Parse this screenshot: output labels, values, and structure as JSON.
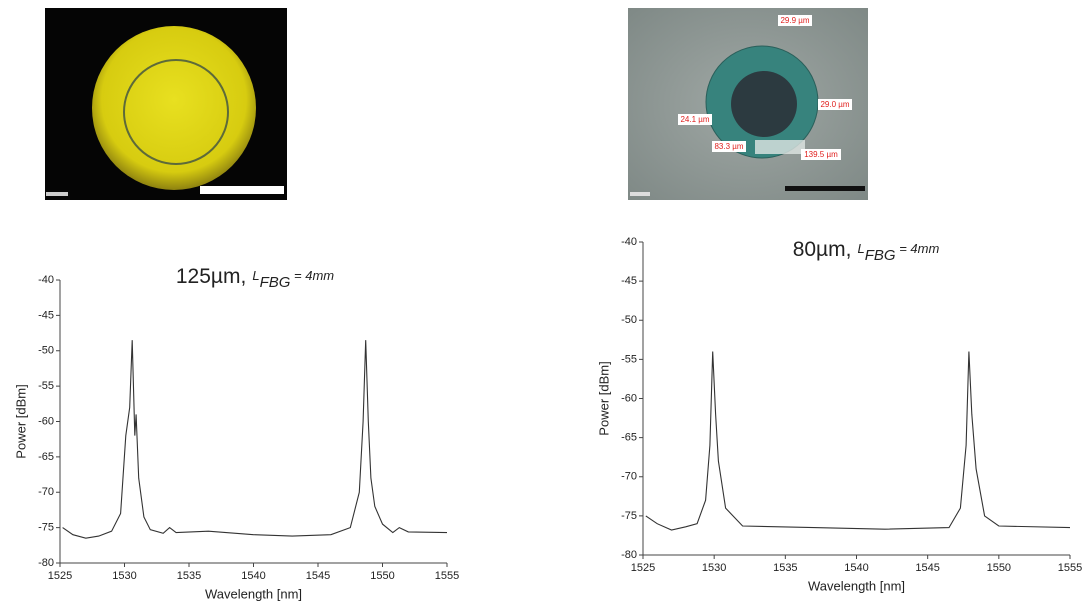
{
  "micrograph_labels": [
    "29.9 µm",
    "29.0 µm",
    "24.1 µm",
    "83.3 µm",
    "139.5 µm"
  ],
  "chart_data": [
    {
      "type": "line",
      "title": "125µm,",
      "title_symbol": "L",
      "title_subscript": "FBG",
      "title_suffix": " = 4mm",
      "x_label": "Wavelength [nm]",
      "y_label": "Power [dBm]",
      "xlim": [
        1525,
        1555
      ],
      "xticks": [
        1525,
        1530,
        1535,
        1540,
        1545,
        1550,
        1555
      ],
      "ylim": [
        -80,
        -40
      ],
      "yticks": [
        -80,
        -75,
        -70,
        -65,
        -60,
        -55,
        -50,
        -45,
        -40
      ],
      "series": [
        {
          "color": "#333333",
          "x": [
            1525.2,
            1526,
            1527,
            1528,
            1529,
            1529.7,
            1530.1,
            1530.4,
            1530.6,
            1530.8,
            1530.9,
            1531.1,
            1531.5,
            1532,
            1533,
            1533.5,
            1534,
            1536.5,
            1540,
            1543,
            1546,
            1547.5,
            1548.2,
            1548.5,
            1548.7,
            1548.9,
            1549.1,
            1549.4,
            1550,
            1550.8,
            1551.3,
            1552,
            1555
          ],
          "values": [
            -75,
            -76,
            -76.5,
            -76.2,
            -75.5,
            -73,
            -62,
            -58,
            -48.5,
            -62,
            -59,
            -68,
            -73.5,
            -75.3,
            -75.8,
            -75,
            -75.7,
            -75.5,
            -76,
            -76.2,
            -76,
            -75,
            -70,
            -60,
            -48.5,
            -60,
            -68,
            -72,
            -74.5,
            -75.7,
            -75,
            -75.6,
            -75.7
          ]
        }
      ]
    },
    {
      "type": "line",
      "title": "80µm,",
      "title_symbol": "L",
      "title_subscript": "FBG",
      "title_suffix": " = 4mm",
      "x_label": "Wavelength [nm]",
      "y_label": "Power [dBm]",
      "xlim": [
        1525,
        1555
      ],
      "xticks": [
        1525,
        1530,
        1535,
        1540,
        1545,
        1550,
        1555
      ],
      "ylim": [
        -80,
        -40
      ],
      "yticks": [
        -80,
        -75,
        -70,
        -65,
        -60,
        -55,
        -50,
        -45,
        -40
      ],
      "series": [
        {
          "color": "#333333",
          "x": [
            1525.2,
            1526,
            1527,
            1528,
            1528.8,
            1529.4,
            1529.7,
            1529.9,
            1530.1,
            1530.3,
            1530.8,
            1532,
            1537,
            1542,
            1546.5,
            1547.3,
            1547.7,
            1547.9,
            1548.1,
            1548.4,
            1549,
            1550,
            1555
          ],
          "values": [
            -75,
            -76,
            -76.8,
            -76.4,
            -76,
            -73,
            -66,
            -54,
            -62,
            -68,
            -74,
            -76.3,
            -76.5,
            -76.7,
            -76.5,
            -74,
            -66,
            -54,
            -62,
            -69,
            -75,
            -76.3,
            -76.5
          ]
        }
      ]
    }
  ]
}
